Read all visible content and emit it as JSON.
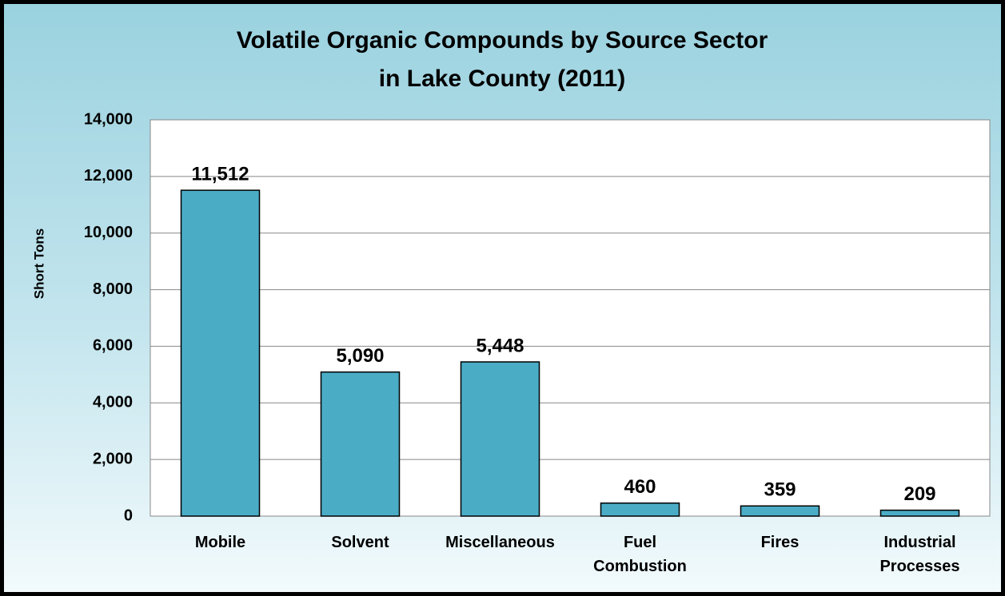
{
  "chart_data": {
    "type": "bar",
    "title": [
      "Volatile Organic Compounds by Source Sector",
      "in Lake County (2011)"
    ],
    "y_label": "Short Tons",
    "categories": [
      "Mobile",
      "Solvent",
      "Miscellaneous",
      "Fuel Combustion",
      "Fires",
      "Industrial Processes"
    ],
    "values": [
      11512,
      5090,
      5448,
      460,
      359,
      209
    ],
    "value_labels": [
      "11,512",
      "5,090",
      "5,448",
      "460",
      "359",
      "209"
    ],
    "color": "#4bacc6",
    "ylim": [
      0,
      14000
    ],
    "yticks": [
      0,
      {
        "value": 2000,
        "label": "2,000"
      },
      {
        "value": 4000,
        "label": "4,000"
      },
      {
        "value": 6000,
        "label": "6,000"
      },
      {
        "value": 8000,
        "label": "8,000"
      },
      {
        "value": 10000,
        "label": "10,000"
      },
      {
        "value": 12000,
        "label": "12,000"
      },
      {
        "value": 14000,
        "label": "14,000"
      }
    ],
    "grid": true
  }
}
